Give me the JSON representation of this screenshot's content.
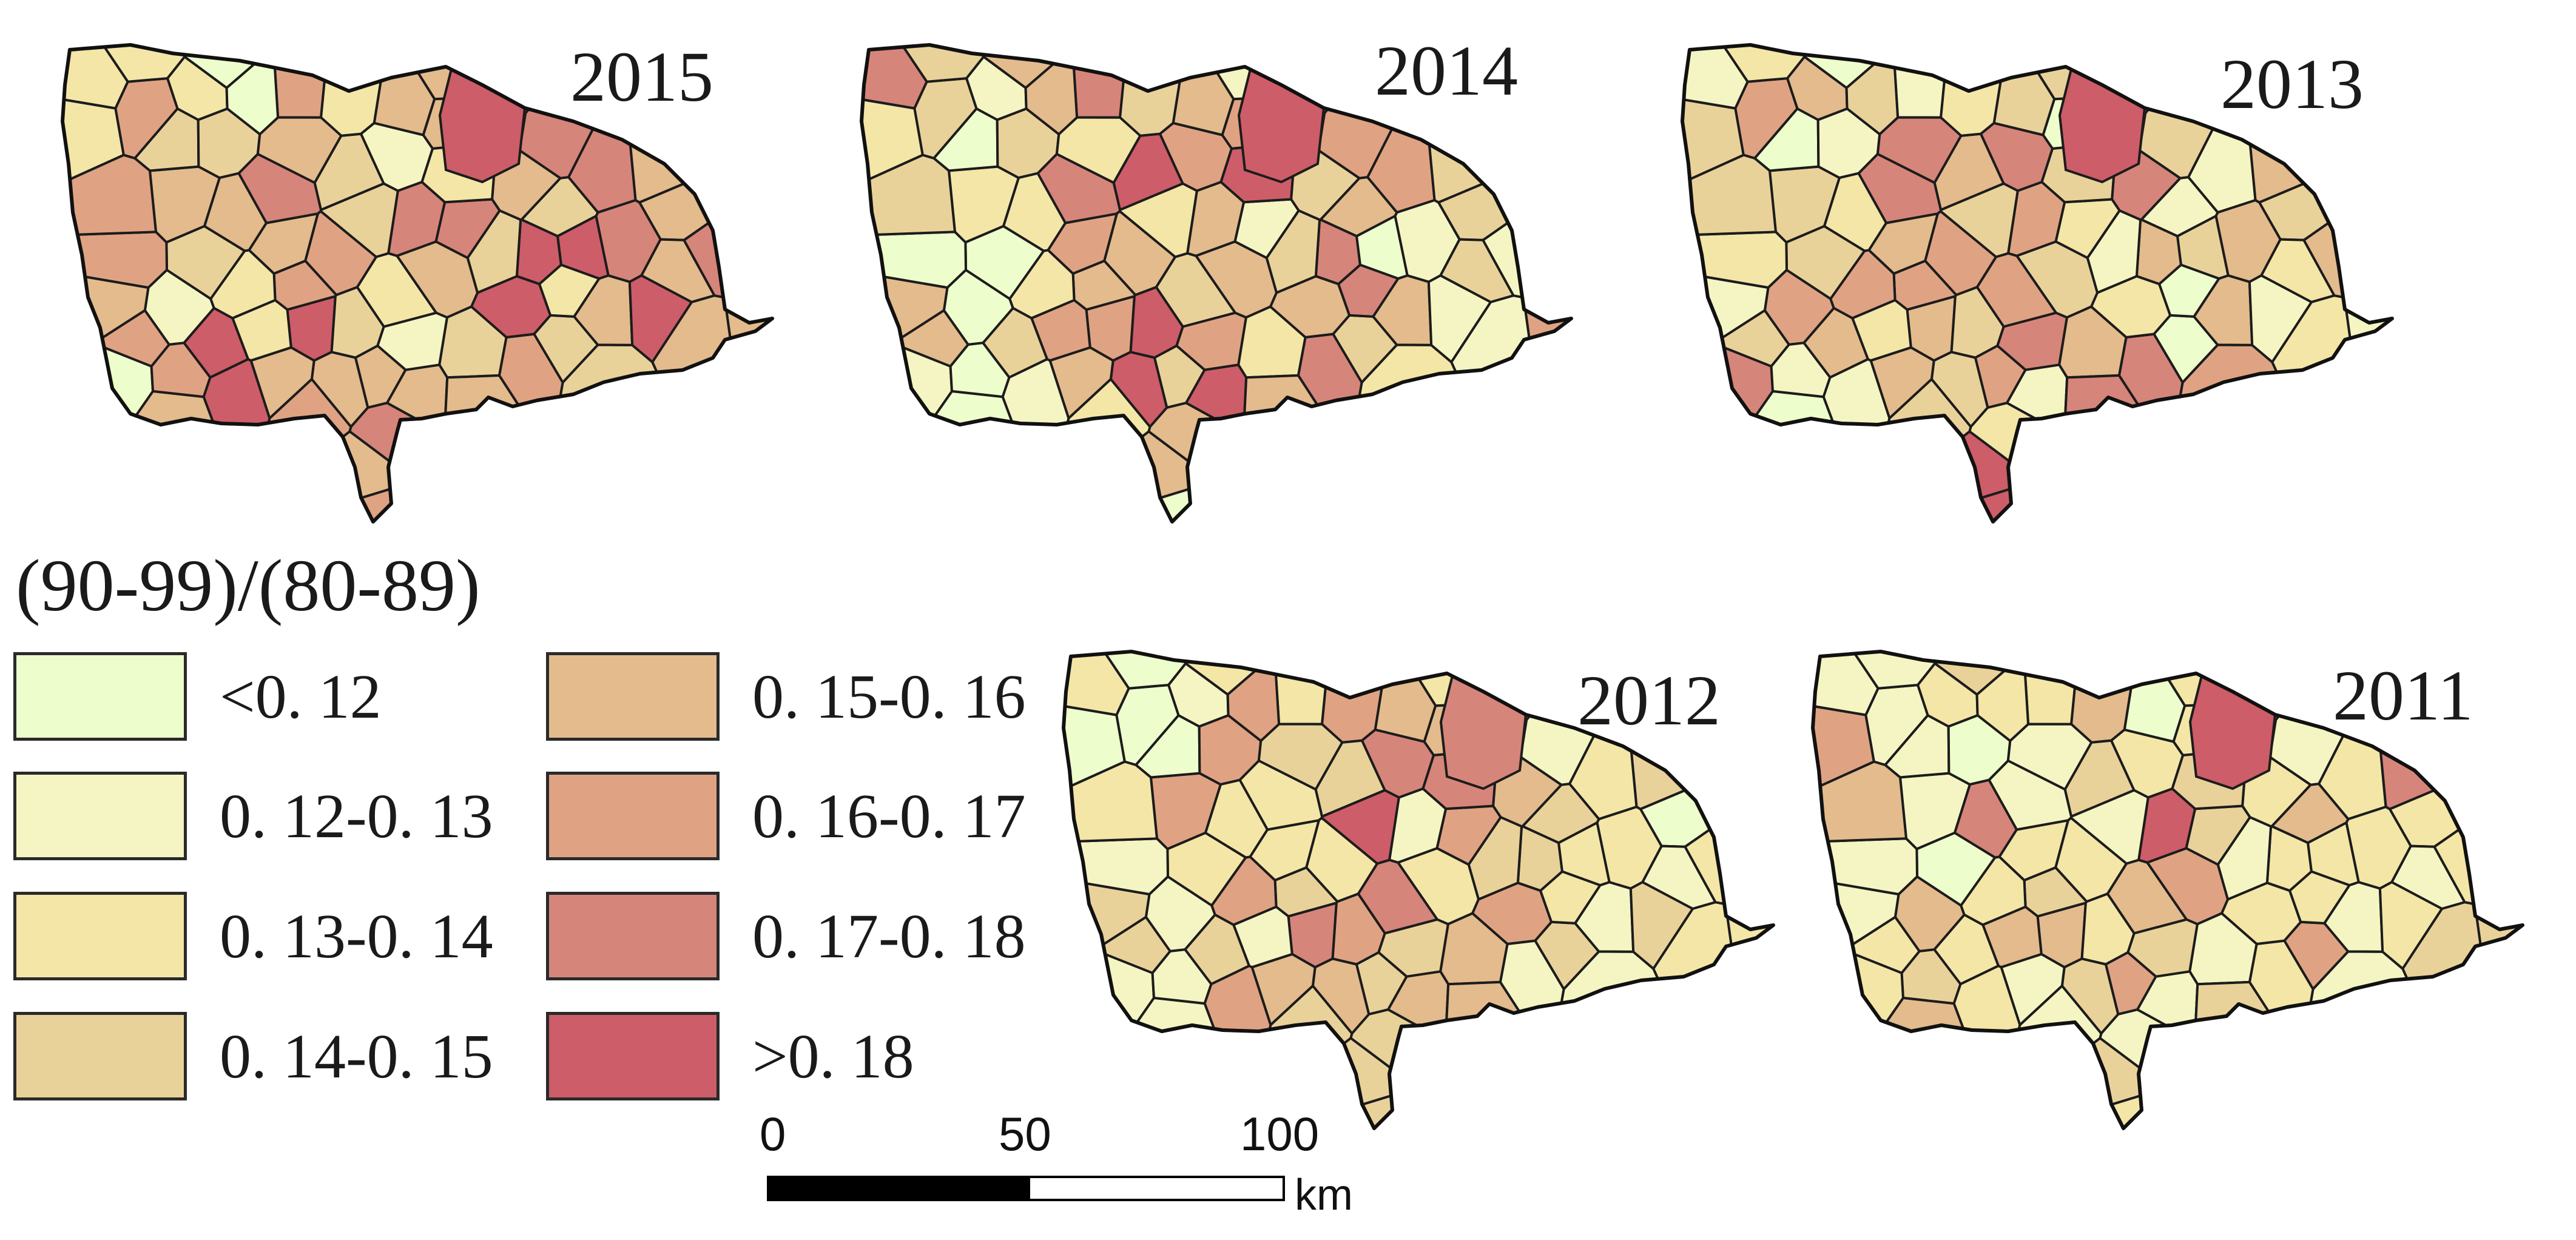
{
  "legend": {
    "title": "(90-99)/(80-89)",
    "classes": [
      {
        "label": "<0. 12",
        "color": "#EEFDCC"
      },
      {
        "label": "0. 12-0. 13",
        "color": "#F4F5C2"
      },
      {
        "label": "0. 13-0. 14",
        "color": "#F3E6A7"
      },
      {
        "label": "0. 14-0. 15",
        "color": "#E9D29A"
      },
      {
        "label": "0. 15-0. 16",
        "color": "#E3BB8C"
      },
      {
        "label": "0. 16-0. 17",
        "color": "#DFA383"
      },
      {
        "label": "0. 17-0. 18",
        "color": "#D6857A"
      },
      {
        "label": ">0. 18",
        "color": "#CD5D68"
      }
    ]
  },
  "maps": [
    {
      "year": "2015",
      "seed": 15,
      "weights": [
        0.02,
        0.04,
        0.16,
        0.18,
        0.22,
        0.18,
        0.12,
        0.08
      ]
    },
    {
      "year": "2014",
      "seed": 14,
      "weights": [
        0.04,
        0.12,
        0.2,
        0.2,
        0.2,
        0.12,
        0.08,
        0.04
      ]
    },
    {
      "year": "2013",
      "seed": 13,
      "weights": [
        0.05,
        0.16,
        0.22,
        0.22,
        0.18,
        0.1,
        0.05,
        0.02
      ]
    },
    {
      "year": "2012",
      "seed": 12,
      "weights": [
        0.04,
        0.22,
        0.28,
        0.22,
        0.14,
        0.08,
        0.02,
        0.0
      ]
    },
    {
      "year": "2011",
      "seed": 11,
      "weights": [
        0.04,
        0.26,
        0.34,
        0.22,
        0.08,
        0.04,
        0.02,
        0.0
      ]
    }
  ],
  "highlights": {
    "2015": [
      7,
      5
    ],
    "2014": [
      7,
      5
    ],
    "2013": [
      7
    ],
    "2012": [
      6
    ],
    "2011": [
      7
    ]
  },
  "scale_bar": {
    "ticks": [
      "0",
      "50",
      "100"
    ],
    "unit": "km"
  }
}
